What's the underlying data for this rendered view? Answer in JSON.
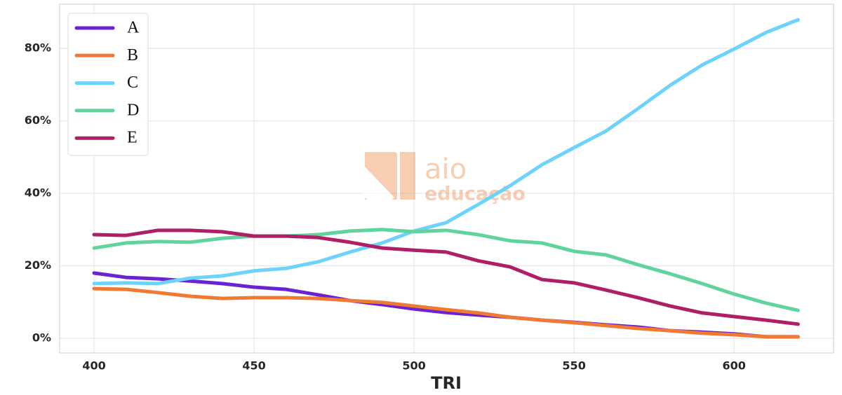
{
  "chart_data": {
    "type": "line",
    "xlabel": "TRI",
    "x": [
      400,
      410,
      420,
      430,
      440,
      450,
      460,
      470,
      480,
      490,
      500,
      510,
      520,
      530,
      540,
      550,
      560,
      570,
      580,
      590,
      600,
      610,
      620
    ],
    "series": [
      {
        "name": "A",
        "color": "#6a22d3",
        "values": [
          18,
          16.8,
          16.4,
          15.8,
          15.1,
          14.1,
          13.5,
          12,
          10.4,
          9.3,
          8.1,
          7.1,
          6.4,
          5.8,
          5,
          4.4,
          3.7,
          3.1,
          2.1,
          1.7,
          1.2,
          0.4,
          0.4
        ]
      },
      {
        "name": "B",
        "color": "#f07a32",
        "values": [
          13.7,
          13.5,
          12.6,
          11.6,
          11,
          11.2,
          11.2,
          11,
          10.4,
          9.9,
          8.9,
          7.9,
          7,
          5.8,
          5,
          4.3,
          3.5,
          2.7,
          2.1,
          1.4,
          1,
          0.4,
          0.4
        ]
      },
      {
        "name": "C",
        "color": "#6dd3fb",
        "values": [
          15.1,
          15.3,
          15.1,
          16.6,
          17.2,
          18.6,
          19.3,
          21.1,
          23.8,
          26.3,
          29.6,
          31.9,
          36.9,
          42.1,
          47.9,
          52.6,
          57.2,
          63.4,
          69.8,
          75.4,
          79.8,
          84.4,
          87.9
        ]
      },
      {
        "name": "D",
        "color": "#5fd49c",
        "values": [
          24.9,
          26.3,
          26.7,
          26.5,
          27.6,
          28.2,
          28.2,
          28.6,
          29.6,
          30,
          29.4,
          29.8,
          28.6,
          26.9,
          26.3,
          24,
          23,
          20.3,
          17.8,
          15.1,
          12.2,
          9.7,
          7.7
        ]
      },
      {
        "name": "E",
        "color": "#b01f66",
        "values": [
          28.6,
          28.4,
          29.8,
          29.8,
          29.4,
          28.2,
          28.2,
          27.8,
          26.5,
          24.9,
          24.3,
          23.8,
          21.4,
          19.7,
          16.2,
          15.3,
          13.3,
          11.2,
          8.9,
          7,
          6,
          5,
          3.9
        ]
      }
    ],
    "xlim": [
      389.25,
      631.1
    ],
    "ylim": [
      -4.06,
      92.2
    ],
    "xticks": [
      400,
      450,
      500,
      550,
      600
    ],
    "yticks": [
      {
        "value": 0,
        "label": "0%"
      },
      {
        "value": 20,
        "label": "20%"
      },
      {
        "value": 40,
        "label": "40%"
      },
      {
        "value": 60,
        "label": "60%"
      },
      {
        "value": 80,
        "label": "80%"
      }
    ],
    "grid": true,
    "legend": "upper left"
  },
  "watermark": {
    "line1": "aio",
    "line2": "educação"
  }
}
